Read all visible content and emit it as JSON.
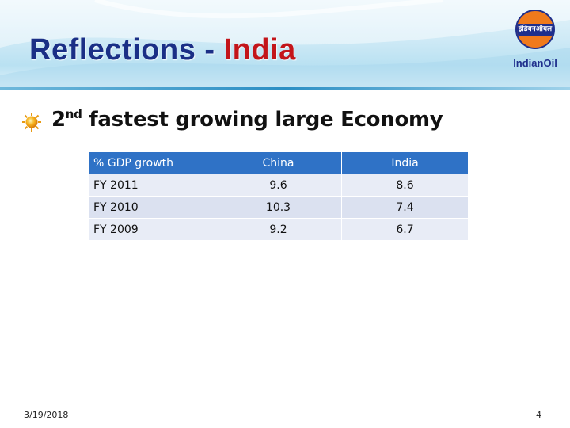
{
  "slide": {
    "title_main": "Reflections - ",
    "title_accent": "India",
    "colors": {
      "title": "#1a2f86",
      "accent": "#c3151a",
      "table_header": "#2f72c6"
    }
  },
  "logo": {
    "band_text": "इंडियनऑयल",
    "wordmark": "IndianOil",
    "icon": "indianoil-logo"
  },
  "bullet": {
    "icon": "sun-bullet-icon",
    "ordinal": "2",
    "ordinal_suffix": "nd",
    "text": " fastest growing large Economy"
  },
  "table": {
    "headers": [
      "% GDP growth",
      "China",
      "India"
    ],
    "rows": [
      [
        "FY 2011",
        "9.6",
        "8.6"
      ],
      [
        "FY 2010",
        "10.3",
        "7.4"
      ],
      [
        "FY 2009",
        "9.2",
        "6.7"
      ]
    ]
  },
  "footer": {
    "date": "3/19/2018",
    "page_number": "4"
  }
}
